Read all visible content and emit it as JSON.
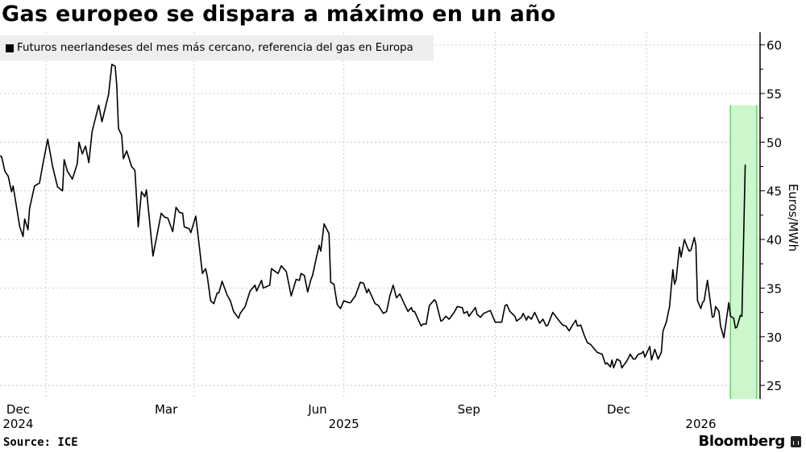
{
  "title": "Gas europeo se dispara a máximo en un año",
  "source": "Source: ICE",
  "brand": "Bloomberg",
  "brand_icon": "bloomberg-chart-icon",
  "colors": {
    "line": "#000000",
    "highlight_fill": "#ccf7cc",
    "highlight_stroke": "#4cc24c",
    "grid": "#cccccc",
    "legend_bg": "#eeeeee"
  },
  "chart_data": {
    "type": "line",
    "title": "Gas europeo se dispara a máximo en un año",
    "legend": {
      "placement": "top-left",
      "entries": [
        "Futuros neerlandeses del mes más cercano, referencia del gas en Europa"
      ]
    },
    "ylabel": "Euros/MWh",
    "yaxis_side": "right",
    "ylim": [
      23.6,
      61.3
    ],
    "yticks": [
      "25",
      "30",
      "35",
      "40",
      "45",
      "50",
      "55",
      "60"
    ],
    "xlim": [
      "2024-12-04",
      "2026-03-11"
    ],
    "xticks": [
      {
        "date": "2024-12-15",
        "label": "Dec",
        "year": "2024"
      },
      {
        "date": "2025-03-15",
        "label": "Mar"
      },
      {
        "date": "2025-06-15",
        "label": "Jun"
      },
      {
        "date": "2025-07-01",
        "label": "",
        "year": "2025"
      },
      {
        "date": "2025-09-15",
        "label": "Sep"
      },
      {
        "date": "2025-12-15",
        "label": "Dec"
      },
      {
        "date": "2026-02-03",
        "label": "",
        "year": "2026"
      }
    ],
    "grid": true,
    "highlight": {
      "start": "2026-02-21",
      "end": "2026-03-09"
    },
    "series": [
      {
        "name": "Futuros neerlandeses del mes más cercano, referencia del gas en Europa",
        "points": [
          [
            "2024-12-04",
            48.6
          ],
          [
            "2024-12-05",
            48.5
          ],
          [
            "2024-12-07",
            47.0
          ],
          [
            "2024-12-09",
            46.5
          ],
          [
            "2024-12-11",
            44.9
          ],
          [
            "2024-12-12",
            45.5
          ],
          [
            "2024-12-16",
            41.3
          ],
          [
            "2024-12-18",
            40.3
          ],
          [
            "2024-12-19",
            42.1
          ],
          [
            "2024-12-21",
            41.0
          ],
          [
            "2024-12-22",
            43.2
          ],
          [
            "2024-12-25",
            45.5
          ],
          [
            "2024-12-28",
            45.8
          ],
          [
            "2024-12-30",
            47.7
          ],
          [
            "2025-01-02",
            50.3
          ],
          [
            "2025-01-05",
            47.5
          ],
          [
            "2025-01-08",
            45.4
          ],
          [
            "2025-01-11",
            45.0
          ],
          [
            "2025-01-12",
            48.2
          ],
          [
            "2025-01-14",
            47.0
          ],
          [
            "2025-01-17",
            46.2
          ],
          [
            "2025-01-20",
            47.8
          ],
          [
            "2025-01-21",
            50.0
          ],
          [
            "2025-01-23",
            48.8
          ],
          [
            "2025-01-25",
            49.6
          ],
          [
            "2025-01-27",
            47.9
          ],
          [
            "2025-01-29",
            51.1
          ],
          [
            "2025-02-02",
            53.8
          ],
          [
            "2025-02-04",
            52.1
          ],
          [
            "2025-02-08",
            54.9
          ],
          [
            "2025-02-10",
            58.0
          ],
          [
            "2025-02-12",
            57.8
          ],
          [
            "2025-02-13",
            55.8
          ],
          [
            "2025-02-14",
            51.4
          ],
          [
            "2025-02-16",
            50.7
          ],
          [
            "2025-02-17",
            48.3
          ],
          [
            "2025-02-19",
            49.1
          ],
          [
            "2025-02-22",
            47.5
          ],
          [
            "2025-02-24",
            47.1
          ],
          [
            "2025-02-26",
            41.3
          ],
          [
            "2025-02-28",
            44.9
          ],
          [
            "2025-03-02",
            44.4
          ],
          [
            "2025-03-03",
            45.1
          ],
          [
            "2025-03-05",
            41.8
          ],
          [
            "2025-03-07",
            38.3
          ],
          [
            "2025-03-12",
            42.7
          ],
          [
            "2025-03-14",
            42.3
          ],
          [
            "2025-03-16",
            42.2
          ],
          [
            "2025-03-19",
            40.8
          ],
          [
            "2025-03-21",
            43.3
          ],
          [
            "2025-03-23",
            42.8
          ],
          [
            "2025-03-25",
            42.7
          ],
          [
            "2025-03-26",
            41.3
          ],
          [
            "2025-03-29",
            41.1
          ],
          [
            "2025-03-30",
            40.7
          ],
          [
            "2025-04-02",
            42.4
          ],
          [
            "2025-04-04",
            39.5
          ],
          [
            "2025-04-06",
            36.5
          ],
          [
            "2025-04-08",
            37.0
          ],
          [
            "2025-04-09",
            36.2
          ],
          [
            "2025-04-11",
            33.7
          ],
          [
            "2025-04-13",
            33.4
          ],
          [
            "2025-04-15",
            34.5
          ],
          [
            "2025-04-16",
            34.5
          ],
          [
            "2025-04-18",
            35.7
          ],
          [
            "2025-04-21",
            34.3
          ],
          [
            "2025-04-23",
            33.7
          ],
          [
            "2025-04-25",
            32.6
          ],
          [
            "2025-04-28",
            31.9
          ],
          [
            "2025-04-29",
            32.4
          ],
          [
            "2025-05-02",
            33.1
          ],
          [
            "2025-05-05",
            34.7
          ],
          [
            "2025-05-08",
            35.3
          ],
          [
            "2025-05-09",
            34.7
          ],
          [
            "2025-05-12",
            35.8
          ],
          [
            "2025-05-13",
            35.0
          ],
          [
            "2025-05-17",
            35.3
          ],
          [
            "2025-05-18",
            37.0
          ],
          [
            "2025-05-22",
            36.5
          ],
          [
            "2025-05-24",
            37.3
          ],
          [
            "2025-05-27",
            36.7
          ],
          [
            "2025-05-30",
            34.2
          ],
          [
            "2025-06-02",
            35.9
          ],
          [
            "2025-06-04",
            35.8
          ],
          [
            "2025-06-05",
            36.5
          ],
          [
            "2025-06-07",
            36.3
          ],
          [
            "2025-06-09",
            34.6
          ],
          [
            "2025-06-11",
            35.9
          ],
          [
            "2025-06-12",
            36.3
          ],
          [
            "2025-06-14",
            37.9
          ],
          [
            "2025-06-16",
            39.4
          ],
          [
            "2025-06-17",
            38.8
          ],
          [
            "2025-06-19",
            41.6
          ],
          [
            "2025-06-22",
            40.6
          ],
          [
            "2025-06-23",
            35.6
          ],
          [
            "2025-06-25",
            35.4
          ],
          [
            "2025-06-27",
            33.3
          ],
          [
            "2025-06-29",
            32.9
          ],
          [
            "2025-07-01",
            33.7
          ],
          [
            "2025-07-04",
            33.5
          ],
          [
            "2025-07-05",
            33.5
          ],
          [
            "2025-07-08",
            34.2
          ],
          [
            "2025-07-11",
            35.6
          ],
          [
            "2025-07-13",
            35.5
          ],
          [
            "2025-07-15",
            34.5
          ],
          [
            "2025-07-16",
            34.9
          ],
          [
            "2025-07-20",
            33.4
          ],
          [
            "2025-07-22",
            33.2
          ],
          [
            "2025-07-25",
            32.4
          ],
          [
            "2025-07-27",
            32.6
          ],
          [
            "2025-07-29",
            34.2
          ],
          [
            "2025-07-31",
            35.3
          ],
          [
            "2025-08-02",
            34.0
          ],
          [
            "2025-08-04",
            34.4
          ],
          [
            "2025-08-07",
            33.3
          ],
          [
            "2025-08-09",
            32.6
          ],
          [
            "2025-08-11",
            33.0
          ],
          [
            "2025-08-12",
            32.6
          ],
          [
            "2025-08-13",
            32.6
          ],
          [
            "2025-08-17",
            31.1
          ],
          [
            "2025-08-18",
            31.3
          ],
          [
            "2025-08-20",
            31.3
          ],
          [
            "2025-08-22",
            33.2
          ],
          [
            "2025-08-25",
            33.8
          ],
          [
            "2025-08-26",
            33.6
          ],
          [
            "2025-08-29",
            31.6
          ],
          [
            "2025-08-30",
            31.7
          ],
          [
            "2025-09-01",
            32.1
          ],
          [
            "2025-09-03",
            31.8
          ],
          [
            "2025-09-06",
            32.5
          ],
          [
            "2025-09-08",
            33.1
          ],
          [
            "2025-09-11",
            33.0
          ],
          [
            "2025-09-12",
            32.4
          ],
          [
            "2025-09-14",
            32.6
          ],
          [
            "2025-09-15",
            32.1
          ],
          [
            "2025-09-19",
            33.0
          ],
          [
            "2025-09-20",
            32.3
          ],
          [
            "2025-09-22",
            32.0
          ],
          [
            "2025-09-24",
            32.4
          ],
          [
            "2025-09-28",
            32.7
          ],
          [
            "2025-10-01",
            31.5
          ],
          [
            "2025-10-05",
            31.5
          ],
          [
            "2025-10-07",
            33.2
          ],
          [
            "2025-10-08",
            33.3
          ],
          [
            "2025-10-10",
            32.6
          ],
          [
            "2025-10-13",
            32.1
          ],
          [
            "2025-10-14",
            31.6
          ],
          [
            "2025-10-17",
            32.0
          ],
          [
            "2025-10-18",
            32.4
          ],
          [
            "2025-10-20",
            31.7
          ],
          [
            "2025-10-21",
            32.1
          ],
          [
            "2025-10-23",
            31.8
          ],
          [
            "2025-10-25",
            32.5
          ],
          [
            "2025-10-28",
            31.4
          ],
          [
            "2025-10-30",
            31.8
          ],
          [
            "2025-11-01",
            31.1
          ],
          [
            "2025-11-02",
            31.2
          ],
          [
            "2025-11-05",
            32.5
          ],
          [
            "2025-11-09",
            31.6
          ],
          [
            "2025-11-11",
            31.2
          ],
          [
            "2025-11-13",
            31.1
          ],
          [
            "2025-11-15",
            30.6
          ],
          [
            "2025-11-17",
            31.2
          ],
          [
            "2025-11-19",
            31.7
          ],
          [
            "2025-11-20",
            31.1
          ],
          [
            "2025-11-22",
            31.2
          ],
          [
            "2025-11-24",
            30.2
          ],
          [
            "2025-11-26",
            29.4
          ],
          [
            "2025-11-28",
            29.2
          ],
          [
            "2025-12-02",
            28.4
          ],
          [
            "2025-12-05",
            28.2
          ],
          [
            "2025-12-07",
            27.2
          ],
          [
            "2025-12-08",
            27.3
          ],
          [
            "2025-12-10",
            26.9
          ],
          [
            "2025-12-11",
            27.6
          ],
          [
            "2025-12-12",
            26.8
          ],
          [
            "2025-12-14",
            27.7
          ],
          [
            "2025-12-16",
            27.5
          ],
          [
            "2025-12-17",
            26.8
          ],
          [
            "2025-12-20",
            27.5
          ],
          [
            "2025-12-22",
            28.2
          ],
          [
            "2025-12-24",
            27.7
          ],
          [
            "2025-12-25",
            27.7
          ],
          [
            "2025-12-27",
            28.2
          ],
          [
            "2025-12-29",
            28.3
          ],
          [
            "2025-12-30",
            28.5
          ],
          [
            "2025-12-31",
            27.9
          ],
          [
            "2026-01-03",
            29.0
          ],
          [
            "2026-01-04",
            27.6
          ],
          [
            "2026-01-06",
            28.7
          ],
          [
            "2026-01-08",
            27.7
          ],
          [
            "2026-01-10",
            28.4
          ],
          [
            "2026-01-11",
            30.6
          ],
          [
            "2026-01-13",
            31.5
          ],
          [
            "2026-01-15",
            33.1
          ],
          [
            "2026-01-17",
            36.9
          ],
          [
            "2026-01-18",
            35.4
          ],
          [
            "2026-01-19",
            35.9
          ],
          [
            "2026-01-21",
            39.2
          ],
          [
            "2026-01-22",
            38.2
          ],
          [
            "2026-01-24",
            40.0
          ],
          [
            "2026-01-26",
            39.1
          ],
          [
            "2026-01-27",
            38.8
          ],
          [
            "2026-01-28",
            38.9
          ],
          [
            "2026-01-30",
            40.2
          ],
          [
            "2026-01-31",
            39.4
          ],
          [
            "2026-02-01",
            33.7
          ],
          [
            "2026-02-03",
            32.9
          ],
          [
            "2026-02-04",
            33.5
          ],
          [
            "2026-02-05",
            33.7
          ],
          [
            "2026-02-07",
            35.8
          ],
          [
            "2026-02-10",
            32.0
          ],
          [
            "2026-02-11",
            32.1
          ],
          [
            "2026-02-12",
            33.1
          ],
          [
            "2026-02-14",
            32.6
          ],
          [
            "2026-02-15",
            31.1
          ],
          [
            "2026-02-17",
            29.9
          ],
          [
            "2026-02-20",
            33.5
          ],
          [
            "2026-02-21",
            32.1
          ],
          [
            "2026-02-23",
            31.9
          ],
          [
            "2026-02-24",
            30.9
          ],
          [
            "2026-02-25",
            31.0
          ],
          [
            "2026-02-27",
            32.2
          ],
          [
            "2026-02-28",
            32.1
          ],
          [
            "2026-03-02",
            47.7
          ]
        ]
      }
    ]
  }
}
